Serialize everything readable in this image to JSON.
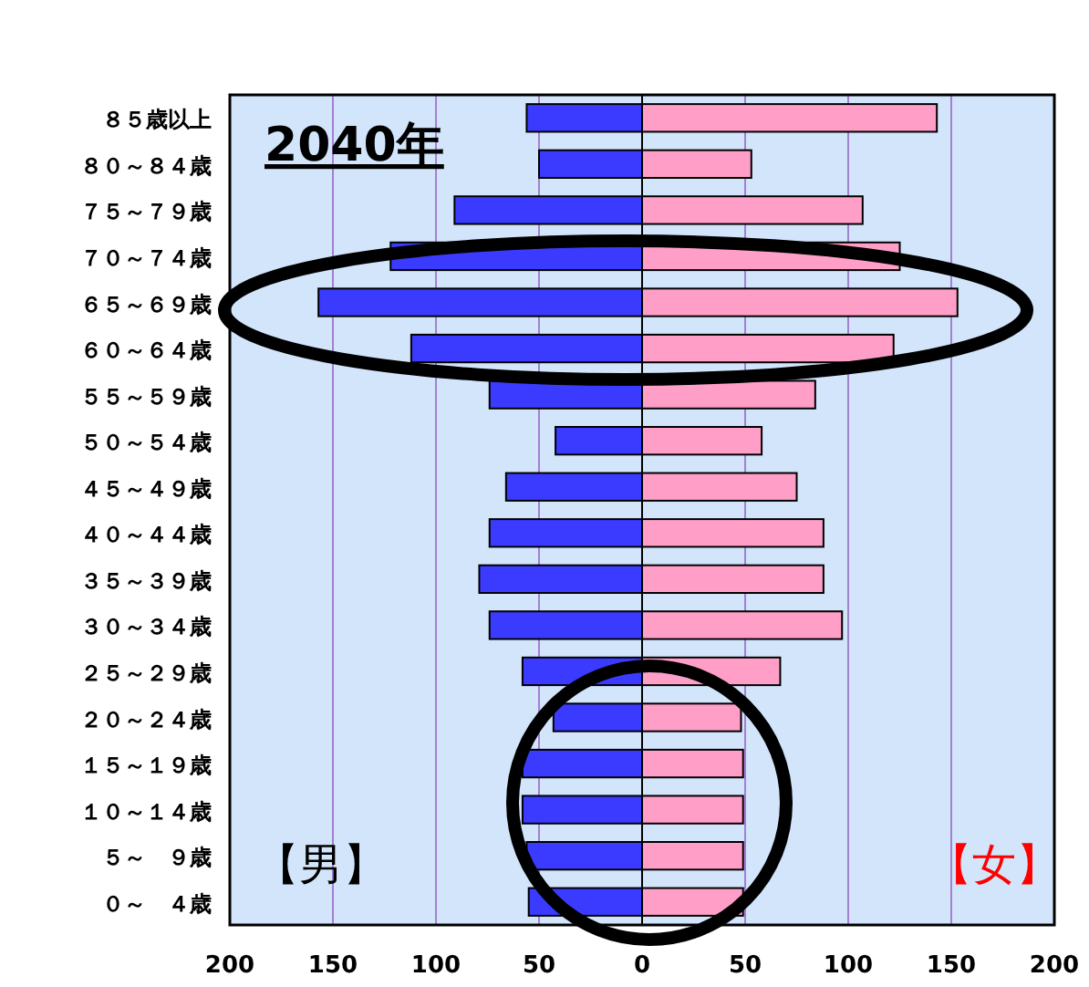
{
  "chart_data": {
    "type": "bar",
    "orientation": "horizontal",
    "stacked": true,
    "title": "2040年",
    "annotations": [
      "【男】",
      "【女】"
    ],
    "categories": [
      "８５歳以上",
      "８０～８４歳",
      "７５～７９歳",
      "７０～７４歳",
      "６５～６９歳",
      "６０～６４歳",
      "５５～５９歳",
      "５０～５４歳",
      "４５～４９歳",
      "４０～４４歳",
      "３５～３９歳",
      "３０～３４歳",
      "２５～２９歳",
      "２０～２４歳",
      "１５～１９歳",
      "１０～１４歳",
      "５～　９歳",
      "０～　４歳"
    ],
    "series": [
      {
        "color": "#3b3bff",
        "values": [
          -56,
          -50,
          -91,
          -122,
          -157,
          -112,
          -74,
          -42,
          -66,
          -74,
          -79,
          -74,
          -58,
          -43,
          -58,
          -58,
          -56,
          -55
        ]
      },
      {
        "color": "#ff9fc8",
        "values": [
          143,
          53,
          107,
          125,
          153,
          122,
          84,
          58,
          75,
          88,
          88,
          97,
          67,
          48,
          49,
          49,
          49,
          49
        ]
      }
    ],
    "xlim": [
      -200,
      200
    ],
    "xticks": [
      {
        "value": -200,
        "label": "200"
      },
      {
        "value": -150,
        "label": "150"
      },
      {
        "value": -100,
        "label": "100"
      },
      {
        "value": -50,
        "label": "50"
      },
      0,
      50,
      100,
      150,
      200
    ],
    "grid": "x"
  }
}
